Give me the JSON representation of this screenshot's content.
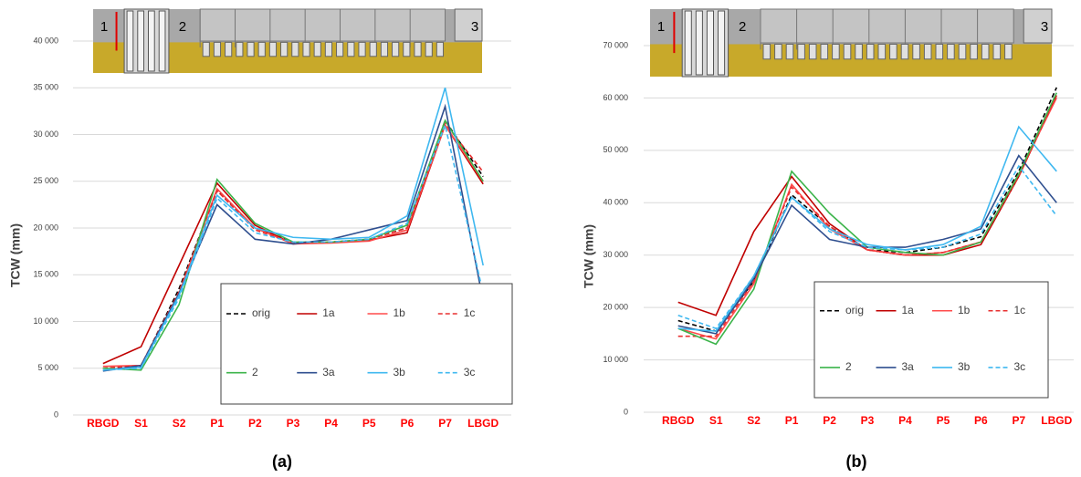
{
  "chart_data": [
    {
      "type": "line",
      "caption": "(a)",
      "y_label": "TCW (mm)",
      "annotations": [
        "1",
        "2",
        "3"
      ],
      "categories": [
        "RBGD",
        "S1",
        "S2",
        "P1",
        "P2",
        "P3",
        "P4",
        "P5",
        "P6",
        "P7",
        "LBGD"
      ],
      "ylim": [
        0,
        40000
      ],
      "yticks": [
        0,
        {
          "value": 5000,
          "label": "5 000"
        },
        {
          "value": 10000,
          "label": "10 000"
        },
        {
          "value": 15000,
          "label": "15 000"
        },
        {
          "value": 20000,
          "label": "20 000"
        },
        {
          "value": 25000,
          "label": "25 000"
        },
        {
          "value": 30000,
          "label": "30 000"
        },
        {
          "value": 35000,
          "label": "35 000"
        },
        {
          "value": 40000,
          "label": "40 000"
        }
      ],
      "grid": true,
      "series": [
        {
          "name": "orig",
          "color": "#000000",
          "line_style": "dashed",
          "values": [
            5000,
            5200,
            13500,
            24000,
            20000,
            18500,
            18500,
            18800,
            20000,
            31500,
            25500
          ]
        },
        {
          "name": "1a",
          "color": "#c00000",
          "line_style": "solid",
          "values": [
            5500,
            7300,
            16000,
            24800,
            20300,
            18300,
            18500,
            18700,
            19500,
            31000,
            24700
          ]
        },
        {
          "name": "1b",
          "color": "#ff4b4b",
          "line_style": "solid",
          "values": [
            5200,
            5300,
            13000,
            24200,
            20000,
            18300,
            18400,
            18600,
            19800,
            31000,
            25000
          ]
        },
        {
          "name": "1c",
          "color": "#e83030",
          "line_style": "dashed",
          "values": [
            5000,
            5300,
            13200,
            24000,
            19800,
            18400,
            18500,
            18800,
            20000,
            31200,
            26000
          ]
        },
        {
          "name": "2",
          "color": "#3cb44b",
          "line_style": "solid",
          "values": [
            5000,
            4800,
            11800,
            25200,
            20500,
            18500,
            18500,
            18800,
            20300,
            31500,
            25000
          ]
        },
        {
          "name": "3a",
          "color": "#2f4f8f",
          "line_style": "solid",
          "values": [
            4700,
            5300,
            13000,
            22500,
            18800,
            18300,
            18800,
            19800,
            20800,
            33000,
            12200
          ]
        },
        {
          "name": "3b",
          "color": "#3fb8f0",
          "line_style": "solid",
          "values": [
            4800,
            5100,
            12800,
            23500,
            20000,
            19000,
            18800,
            19000,
            21300,
            35000,
            16000
          ]
        },
        {
          "name": "3c",
          "color": "#3fb8f0",
          "line_style": "dashed",
          "values": [
            4800,
            5000,
            12500,
            23200,
            19500,
            18500,
            18500,
            18800,
            20500,
            31000,
            13000
          ]
        }
      ]
    },
    {
      "type": "line",
      "caption": "(b)",
      "y_label": "TCW (mm)",
      "annotations": [
        "1",
        "2",
        "3"
      ],
      "categories": [
        "RBGD",
        "S1",
        "S2",
        "P1",
        "P2",
        "P3",
        "P4",
        "P5",
        "P6",
        "P7",
        "LBGD"
      ],
      "ylim": [
        0,
        70000
      ],
      "yticks": [
        0,
        {
          "value": 10000,
          "label": "10 000"
        },
        {
          "value": 20000,
          "label": "20 000"
        },
        {
          "value": 30000,
          "label": "30 000"
        },
        {
          "value": 40000,
          "label": "40 000"
        },
        {
          "value": 50000,
          "label": "50 000"
        },
        {
          "value": 60000,
          "label": "60 000"
        },
        {
          "value": 70000,
          "label": "70 000"
        }
      ],
      "grid": true,
      "series": [
        {
          "name": "orig",
          "color": "#000000",
          "line_style": "dashed",
          "values": [
            17500,
            15500,
            25000,
            41500,
            35500,
            31000,
            30500,
            31500,
            33500,
            46000,
            62000
          ]
        },
        {
          "name": "1a",
          "color": "#c00000",
          "line_style": "solid",
          "values": [
            21000,
            18500,
            34500,
            45000,
            36000,
            31000,
            30000,
            30000,
            32000,
            45000,
            60500
          ]
        },
        {
          "name": "1b",
          "color": "#ff4b4b",
          "line_style": "solid",
          "values": [
            16000,
            14000,
            24500,
            43500,
            35000,
            31000,
            30000,
            30500,
            32500,
            45500,
            60000
          ]
        },
        {
          "name": "1c",
          "color": "#e83030",
          "line_style": "dashed",
          "values": [
            14500,
            14500,
            25000,
            43000,
            35500,
            31000,
            30000,
            30500,
            32500,
            45000,
            60500
          ]
        },
        {
          "name": "2",
          "color": "#3cb44b",
          "line_style": "solid",
          "values": [
            16000,
            13000,
            23500,
            46000,
            38000,
            31500,
            30500,
            30000,
            32500,
            45500,
            61000
          ]
        },
        {
          "name": "3a",
          "color": "#2f4f8f",
          "line_style": "solid",
          "values": [
            16500,
            15000,
            25500,
            39500,
            33000,
            31500,
            31500,
            33000,
            35000,
            49000,
            40000
          ]
        },
        {
          "name": "3b",
          "color": "#3fb8f0",
          "line_style": "solid",
          "values": [
            16000,
            15500,
            26000,
            41000,
            35000,
            32000,
            31000,
            32000,
            35500,
            54500,
            46000
          ]
        },
        {
          "name": "3c",
          "color": "#3fb8f0",
          "line_style": "dashed",
          "values": [
            18500,
            16000,
            26000,
            41000,
            34500,
            31500,
            31000,
            31500,
            34000,
            47000,
            37500
          ]
        }
      ]
    }
  ]
}
